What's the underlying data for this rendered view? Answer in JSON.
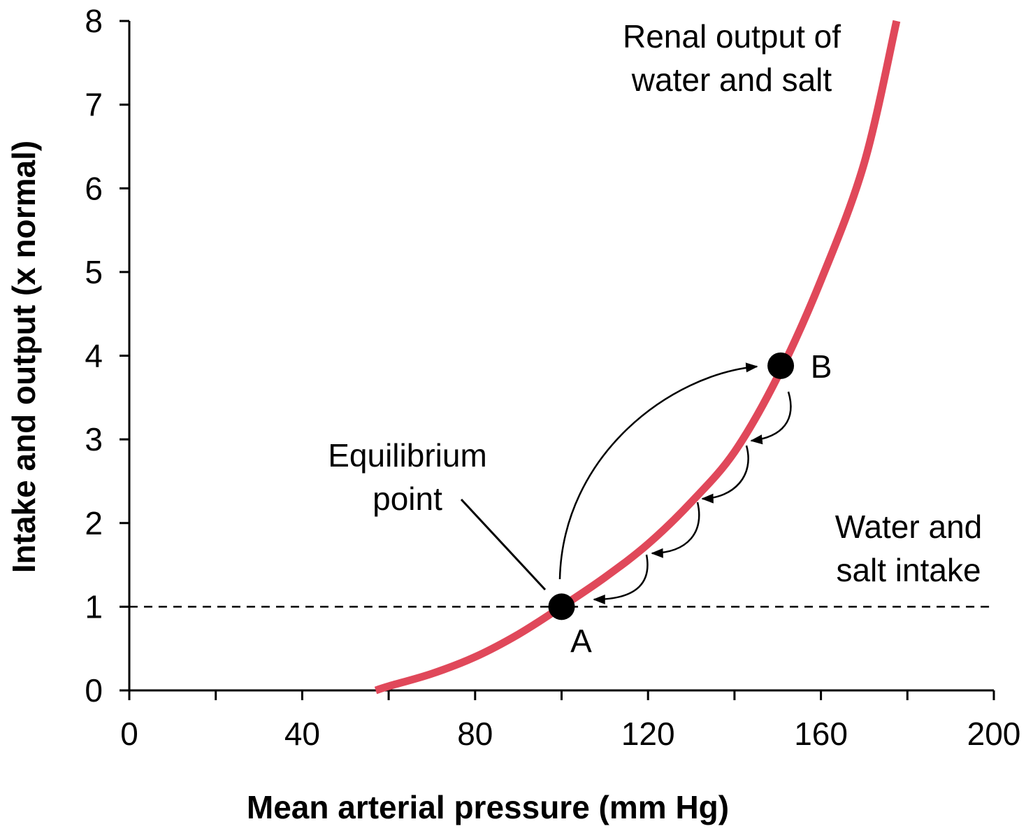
{
  "chart_data": {
    "type": "line",
    "xlabel": "Mean arterial pressure (mm Hg)",
    "ylabel": "Intake and output (x normal)",
    "xlim": [
      0,
      200
    ],
    "ylim": [
      0,
      8
    ],
    "xticks": [
      0,
      40,
      80,
      120,
      160,
      200
    ],
    "xminor_ticks": [
      20,
      60,
      100,
      140,
      180
    ],
    "yticks": [
      0,
      1,
      2,
      3,
      4,
      5,
      6,
      7,
      8
    ],
    "series": [
      {
        "color": "#e0485a",
        "x": [
          57,
          60,
          70,
          80,
          90,
          100,
          110,
          120,
          130,
          140,
          150,
          160,
          170,
          177.5
        ],
        "values": [
          0,
          0.05,
          0.2,
          0.4,
          0.67,
          1.0,
          1.35,
          1.75,
          2.25,
          2.85,
          3.75,
          4.9,
          6.3,
          8
        ]
      },
      {
        "color": "#000000",
        "dashed": true,
        "x": [
          0,
          200
        ],
        "values": [
          1,
          1
        ]
      }
    ],
    "points": [
      {
        "label": "A",
        "x": 100,
        "y": 1
      },
      {
        "label": "B",
        "x": 150.7,
        "y": 3.88
      }
    ],
    "annotations": [
      {
        "text": [
          "Renal output of",
          "water and salt"
        ]
      },
      {
        "text": [
          "Equilibrium",
          "point"
        ]
      },
      {
        "text": [
          "Water and",
          "salt intake"
        ]
      }
    ]
  }
}
